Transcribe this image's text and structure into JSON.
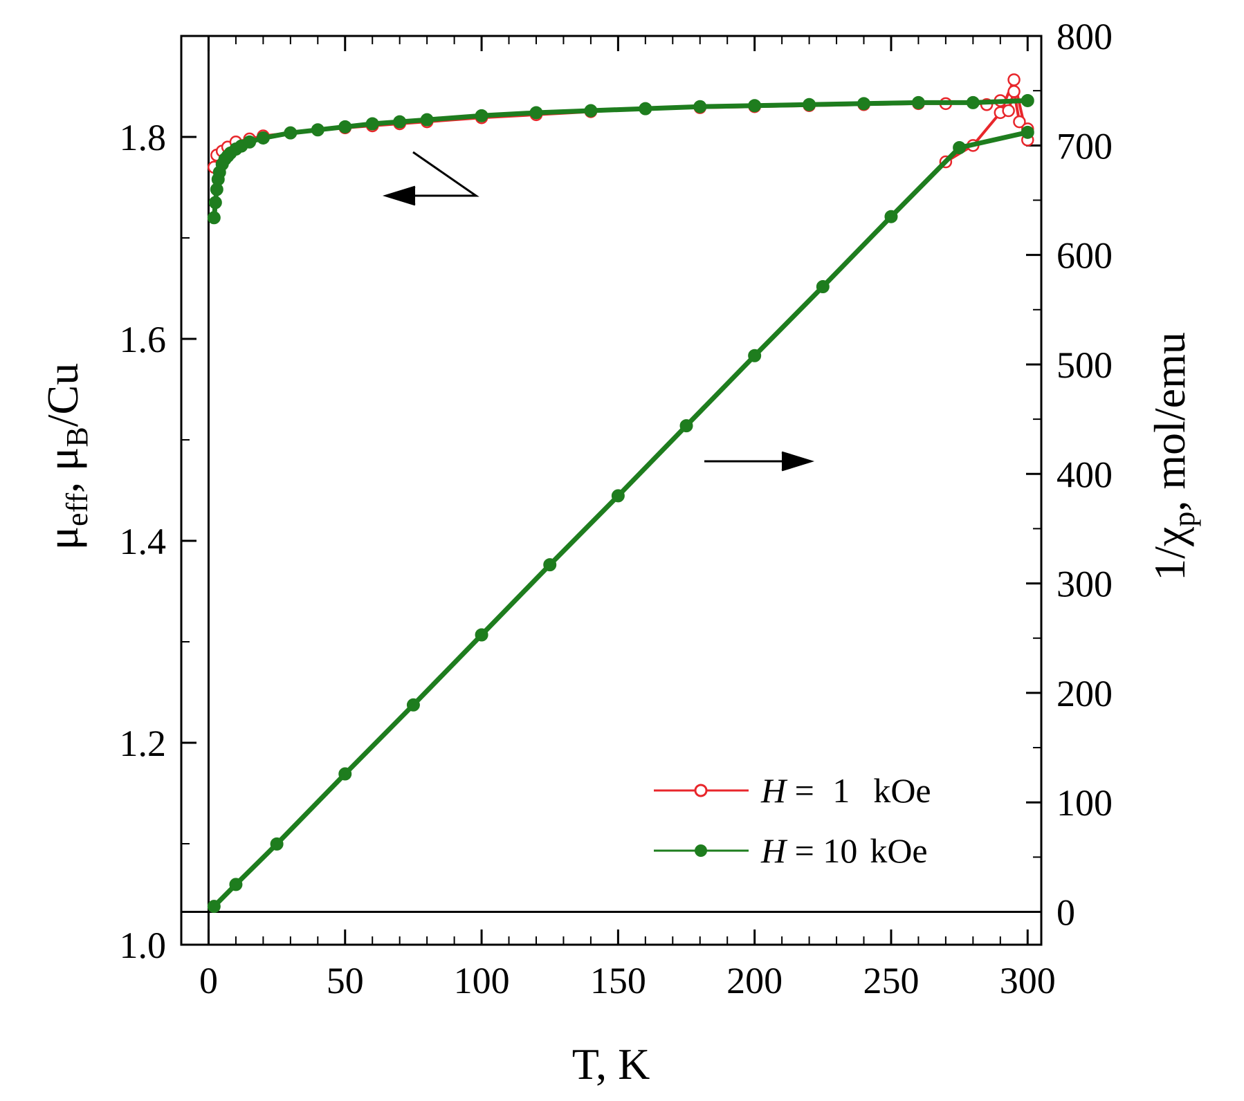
{
  "chart_data": {
    "type": "scatter",
    "xlabel": "T, K",
    "ylabel_left": {
      "main": "μ",
      "sub1": "eff",
      "mid": ", μ",
      "sub2": "B",
      "tail": "/Cu"
    },
    "ylabel_right": {
      "main": "1/χ",
      "sub": "p",
      "tail": ", mol/emu"
    },
    "xlim": [
      -10,
      305
    ],
    "ylim_left": [
      1.0,
      1.9
    ],
    "ylim_right": [
      -30,
      800
    ],
    "x_ticks": [
      "0",
      "50",
      "100",
      "150",
      "200",
      "250",
      "300"
    ],
    "y_left_ticks": [
      "1.0",
      "1.2",
      "1.4",
      "1.6",
      "1.8"
    ],
    "y_right_ticks": [
      "0",
      "100",
      "200",
      "300",
      "400",
      "500",
      "600",
      "700",
      "800"
    ],
    "grid": false,
    "legend_position": "lower-right",
    "colors": {
      "h1": "#e8262b",
      "h10": "#1e7d1e"
    },
    "series": [
      {
        "name": "H = 1 kOe",
        "legend": {
          "var": "H",
          "eq": " = ",
          "val": "1",
          "unit": "kOe"
        },
        "marker": "open-circle",
        "axis": "left",
        "x": [
          2,
          3,
          5,
          7,
          10,
          15,
          20,
          30,
          40,
          50,
          60,
          70,
          80,
          100,
          120,
          140,
          160,
          180,
          200,
          220,
          240,
          260,
          270,
          280,
          285,
          290,
          293,
          295,
          297,
          300
        ],
        "y": [
          1.77,
          1.782,
          1.786,
          1.79,
          1.795,
          1.798,
          1.801,
          1.804,
          1.807,
          1.809,
          1.811,
          1.813,
          1.815,
          1.819,
          1.822,
          1.825,
          1.828,
          1.829,
          1.83,
          1.831,
          1.832,
          1.833,
          1.833,
          1.834,
          1.832,
          1.836,
          1.826,
          1.845,
          1.815,
          1.808
        ]
      },
      {
        "name": "H = 1 kOe",
        "marker": "open-circle",
        "axis": "right",
        "x": [
          2,
          10,
          25,
          50,
          75,
          100,
          125,
          150,
          175,
          200,
          225,
          250,
          270,
          280,
          290,
          295,
          300
        ],
        "y": [
          5,
          25,
          62,
          126,
          189,
          253,
          317,
          380,
          444,
          508,
          571,
          635,
          685,
          700,
          730,
          760,
          705
        ]
      },
      {
        "name": "H = 10 kOe",
        "legend": {
          "var": "H",
          "eq": " = ",
          "val": "10",
          "unit": "kOe"
        },
        "marker": "filled-circle",
        "axis": "left",
        "x": [
          2,
          2.5,
          3,
          3.5,
          4,
          5,
          6,
          7,
          8,
          10,
          12,
          15,
          20,
          30,
          40,
          50,
          60,
          70,
          80,
          100,
          120,
          140,
          160,
          180,
          200,
          220,
          240,
          260,
          280,
          300
        ],
        "y": [
          1.72,
          1.735,
          1.748,
          1.758,
          1.765,
          1.773,
          1.778,
          1.781,
          1.784,
          1.788,
          1.791,
          1.795,
          1.799,
          1.804,
          1.807,
          1.81,
          1.813,
          1.815,
          1.817,
          1.821,
          1.824,
          1.826,
          1.828,
          1.83,
          1.831,
          1.832,
          1.833,
          1.834,
          1.834,
          1.836
        ]
      },
      {
        "name": "H = 10 kOe",
        "marker": "filled-circle",
        "axis": "right",
        "x": [
          2,
          10,
          25,
          50,
          75,
          100,
          125,
          150,
          175,
          200,
          225,
          250,
          275,
          300
        ],
        "y": [
          5,
          25,
          62,
          126,
          189,
          253,
          317,
          380,
          444,
          508,
          571,
          635,
          698,
          712
        ]
      }
    ]
  }
}
